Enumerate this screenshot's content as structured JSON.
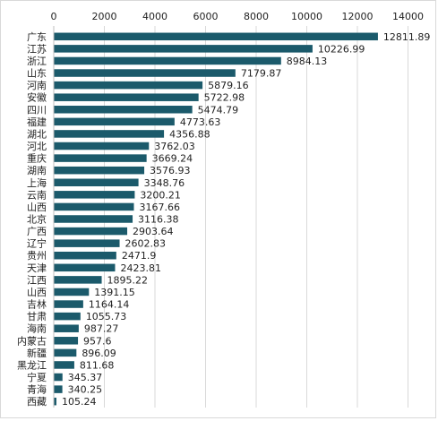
{
  "chart_data": {
    "type": "bar",
    "orientation": "horizontal",
    "categories": [
      "广东",
      "江苏",
      "浙江",
      "山东",
      "河南",
      "安徽",
      "四川",
      "福建",
      "湖北",
      "河北",
      "重庆",
      "湖南",
      "上海",
      "云南",
      "山西",
      "北京",
      "广西",
      "辽宁",
      "贵州",
      "天津",
      "江西",
      "山西",
      "吉林",
      "甘肃",
      "海南",
      "内蒙古",
      "新疆",
      "黑龙江",
      "宁夏",
      "青海",
      "西藏"
    ],
    "values": [
      12811.89,
      10226.99,
      8984.13,
      7179.87,
      5879.16,
      5722.98,
      5474.79,
      4773.63,
      4356.88,
      3762.03,
      3669.24,
      3576.93,
      3348.76,
      3200.21,
      3167.66,
      3116.38,
      2903.64,
      2602.83,
      2471.9,
      2423.81,
      1895.22,
      1391.15,
      1164.14,
      1055.73,
      987.27,
      957.6,
      896.09,
      811.68,
      345.37,
      340.25,
      105.24
    ],
    "value_labels": [
      "12811.89",
      "10226.99",
      "8984.13",
      "7179.87",
      "5879.16",
      "5722.98",
      "5474.79",
      "4773.63",
      "4356.88",
      "3762.03",
      "3669.24",
      "3576.93",
      "3348.76",
      "3200.21",
      "3167.66",
      "3116.38",
      "2903.64",
      "2602.83",
      "2471.9",
      "2423.81",
      "1895.22",
      "1391.15",
      "1164.14",
      "1055.73",
      "987.27",
      "957.6",
      "896.09",
      "811.68",
      "345.37",
      "340.25",
      "105.24"
    ],
    "xlim": [
      0,
      14000
    ],
    "x_ticks": [
      "0",
      "2000",
      "4000",
      "6000",
      "8000",
      "10000",
      "12000",
      "14000"
    ],
    "x_axis_position": "top",
    "grid": true,
    "bar_color": "#1b5a6b",
    "title": "",
    "xlabel": "",
    "ylabel": ""
  }
}
